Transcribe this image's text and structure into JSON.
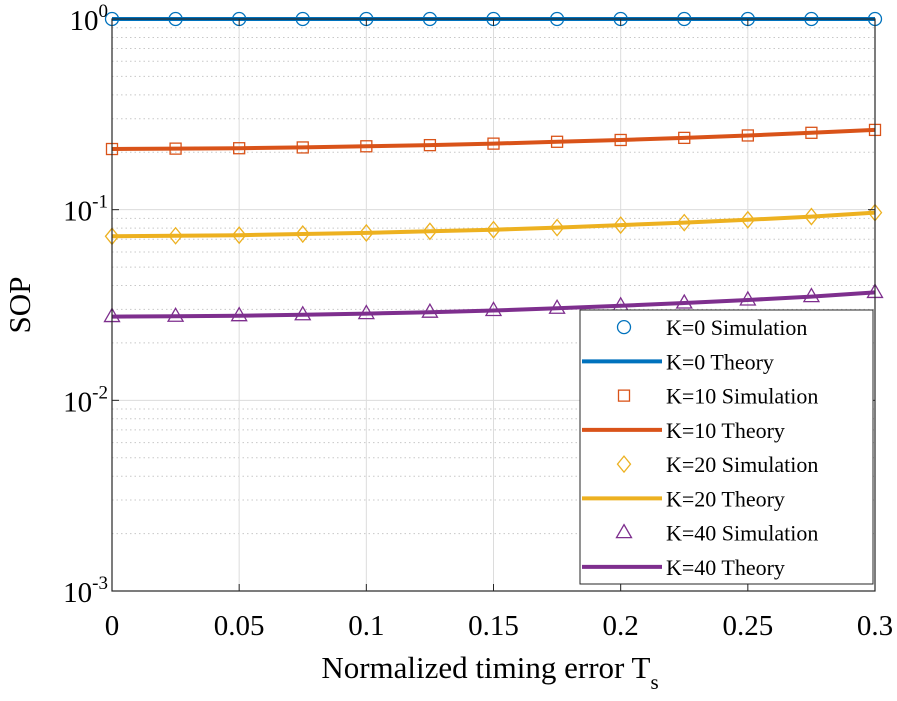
{
  "chart_data": {
    "type": "line",
    "title": "",
    "xlabel": "Normalized timing error T",
    "xlabel_subscript": "s",
    "ylabel": "SOP",
    "yscale": "log",
    "xlim": [
      0,
      0.3
    ],
    "ylim": [
      0.001,
      1
    ],
    "grid": true,
    "x_ticks": [
      0,
      0.05,
      0.1,
      0.15,
      0.2,
      0.25,
      0.3
    ],
    "x_tick_labels": [
      "0",
      "0.05",
      "0.1",
      "0.15",
      "0.2",
      "0.25",
      "0.3"
    ],
    "y_ticks": [
      {
        "value": 1,
        "base": "10",
        "exp": "0"
      },
      {
        "value": 0.1,
        "base": "10",
        "exp": "-1"
      },
      {
        "value": 0.01,
        "base": "10",
        "exp": "-2"
      },
      {
        "value": 0.001,
        "base": "10",
        "exp": "-3"
      }
    ],
    "x": [
      0,
      0.025,
      0.05,
      0.075,
      0.1,
      0.125,
      0.15,
      0.175,
      0.2,
      0.225,
      0.25,
      0.275,
      0.3
    ],
    "series": [
      {
        "name": "K=0 Simulation",
        "kind": "markers",
        "marker": "circle",
        "color": "#0072BD",
        "values": [
          1,
          1,
          1,
          1,
          1,
          1,
          1,
          1,
          1,
          1,
          1,
          1,
          1
        ]
      },
      {
        "name": "K=0 Theory",
        "kind": "line",
        "color": "#0072BD",
        "values": [
          1,
          1,
          1,
          1,
          1,
          1,
          1,
          1,
          1,
          1,
          1,
          1,
          1
        ]
      },
      {
        "name": "K=10 Simulation",
        "kind": "markers",
        "marker": "square",
        "color": "#D95319",
        "values": [
          0.208,
          0.209,
          0.21,
          0.212,
          0.215,
          0.218,
          0.222,
          0.227,
          0.232,
          0.238,
          0.245,
          0.253,
          0.262
        ]
      },
      {
        "name": "K=10 Theory",
        "kind": "line",
        "color": "#D95319",
        "values": [
          0.208,
          0.209,
          0.21,
          0.212,
          0.215,
          0.218,
          0.222,
          0.227,
          0.232,
          0.238,
          0.245,
          0.253,
          0.262
        ]
      },
      {
        "name": "K=20 Simulation",
        "kind": "markers",
        "marker": "diamond",
        "color": "#EDB120",
        "values": [
          0.0725,
          0.073,
          0.0735,
          0.0745,
          0.0755,
          0.077,
          0.0785,
          0.0805,
          0.083,
          0.0855,
          0.0885,
          0.092,
          0.0965
        ]
      },
      {
        "name": "K=20 Theory",
        "kind": "line",
        "color": "#EDB120",
        "values": [
          0.0725,
          0.073,
          0.0735,
          0.0745,
          0.0755,
          0.077,
          0.0785,
          0.0805,
          0.083,
          0.0855,
          0.0885,
          0.092,
          0.0965
        ]
      },
      {
        "name": "K=40 Simulation",
        "kind": "markers",
        "marker": "triangle",
        "color": "#7E2F8E",
        "values": [
          0.0275,
          0.0276,
          0.0278,
          0.0281,
          0.0285,
          0.029,
          0.0296,
          0.0304,
          0.0313,
          0.0324,
          0.0336,
          0.035,
          0.0368
        ]
      },
      {
        "name": "K=40 Theory",
        "kind": "line",
        "color": "#7E2F8E",
        "values": [
          0.0275,
          0.0276,
          0.0278,
          0.0281,
          0.0285,
          0.029,
          0.0296,
          0.0304,
          0.0313,
          0.0324,
          0.0336,
          0.035,
          0.0368
        ]
      }
    ],
    "legend_position": "lower-right"
  }
}
